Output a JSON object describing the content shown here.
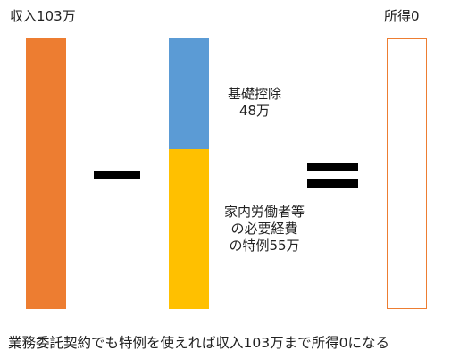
{
  "left": {
    "label": "収入103万",
    "color": "#ED7D31"
  },
  "middle": {
    "segments": [
      {
        "label_lines": [
          "基礎控除",
          "48万"
        ],
        "color": "#5B9BD5"
      },
      {
        "label_lines": [
          "家内労働者等",
          "の必要経費",
          "の特例55万"
        ],
        "color": "#FFC000"
      }
    ]
  },
  "right": {
    "label": "所得0",
    "border_color": "#ED7D31",
    "fill": "#FFFFFF"
  },
  "operators": {
    "minus": "minus-sign",
    "equals": "equals-sign"
  },
  "caption": "業務委託契約でも特例を使えれば収入103万まで所得0になる"
}
